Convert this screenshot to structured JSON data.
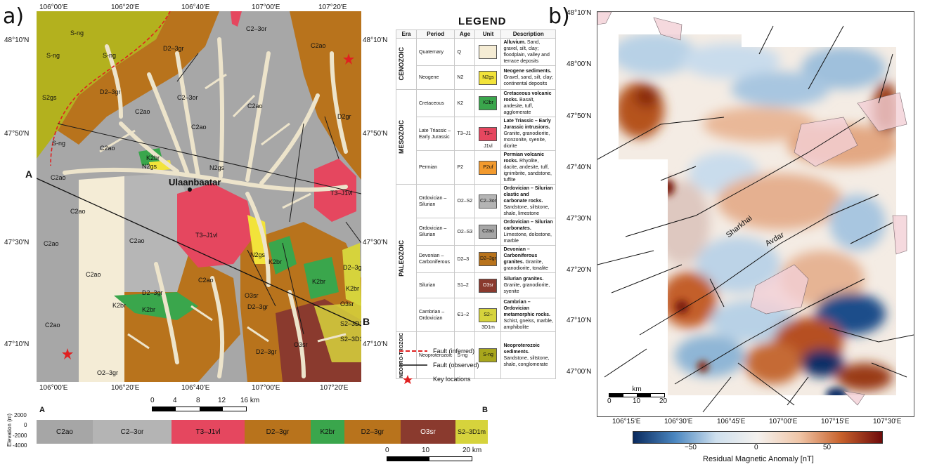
{
  "panel_a_label": "a)",
  "panel_b_label": "b)",
  "map_a": {
    "lon_ticks_top": [
      "106°00'E",
      "106°20'E",
      "106°40'E",
      "107°00'E",
      "107°20'E"
    ],
    "lon_ticks_bottom": [
      "106°00'E",
      "106°20'E",
      "106°40'E",
      "107°00'E",
      "107°20'E"
    ],
    "lat_ticks_left": [
      "48°10'N",
      "47°50'N",
      "47°30'N",
      "47°10'N"
    ],
    "lat_ticks_right": [
      "48°10'N",
      "47°50'N",
      "47°30'N",
      "47°10'N"
    ],
    "city": "Ulaanbaatar",
    "section_start": "A",
    "section_end": "B",
    "unit_labels": {
      "s_ng_1": "S-ng",
      "s_ng_2": "S-ng",
      "s_ng_3": "S-ng",
      "s_ng_4": "S-ng",
      "s2gs": "S2gs",
      "c2ao_1": "C2ao",
      "c2ao_2": "C2ao",
      "c2ao_3": "C2ao",
      "c2ao_4": "C2ao",
      "c2ao_5": "C2ao",
      "c2ao_6": "C2ao",
      "c2ao_7": "C2ao",
      "c2ao_8": "C2ao",
      "c2ao_9": "C2ao",
      "c2ao_10": "C2ao",
      "c2ao_11": "C2ao",
      "c2ao_12": "C2ao",
      "c23or_1": "C2–3or",
      "c23or_2": "C2–3or",
      "d23gr_1": "D2–3gr",
      "d23gr_2": "D2–3gr",
      "d23gr_3": "D2–3gr",
      "d23gr_4": "D2–3gr",
      "d23gr_5": "D2–3gr",
      "d23gr_6": "D2–3gr",
      "n2gs_1": "N2gs",
      "n2gs_2": "N2gs",
      "n2gs_3": "N2gs",
      "k2br_1": "K2br",
      "k2br_2": "K2br",
      "k2br_3": "K2br",
      "k2br_4": "K2br",
      "k2br_5": "K2br",
      "k2br_6": "K2br",
      "t3j1vl_1": "T3–J1vl",
      "t3j1vl_2": "T3–J1vl",
      "o3sr_1": "O3sr",
      "o3sr_2": "O3sr",
      "o3sr_3": "O3sr",
      "d2gr": "D2gr",
      "s23d1m_1": "S2–3D1m",
      "s23d1m_2": "S2–3D1m",
      "o2gr": "O2–3gr"
    },
    "scalebar": {
      "ticks": [
        "0",
        "4",
        "8",
        "12",
        "16 km"
      ]
    }
  },
  "legend": {
    "title": "LEGEND",
    "headers": [
      "Era",
      "Period",
      "Age",
      "Unit",
      "Description"
    ],
    "eras": [
      "CENOZOIC",
      "MESOZOIC",
      "PALEOZOIC",
      "NEOPRO-TROZOIC"
    ],
    "rows": [
      {
        "period": "Quaternary",
        "age": "Q",
        "unit": "",
        "color": "#f5ecd4",
        "title": "Alluvium.",
        "desc": " Sand, gravel, silt, clay; floodplain, valley and terrace deposits"
      },
      {
        "period": "Neogene",
        "age": "N2",
        "unit": "N2gs",
        "color": "#f2e33a",
        "title": "Neogene sediments.",
        "desc": " Gravel, sand, silt, clay; continental deposits"
      },
      {
        "period": "Cretaceous",
        "age": "K2",
        "unit": "K2br",
        "color": "#3aa64c",
        "title": "Cretaceous volcanic rocks.",
        "desc": " Basalt, andesite, tuff, agglomerate"
      },
      {
        "period": "Late Triassic – Early Jurassic",
        "age": "T3–J1",
        "unit": "T3–J1vl",
        "color": "#e5475f",
        "title": "Late Triassic – Early Jurassic intrusions.",
        "desc": " Granite, granodiorite, monzonite, syenite, diorite"
      },
      {
        "period": "Permian",
        "age": "P2",
        "unit": "P2uf",
        "color": "#f29a2e",
        "title": "Permian volcanic rocks.",
        "desc": " Rhyolite, dacite, andesite, tuff, ignimbrite, sandstone, tuffite"
      },
      {
        "period": "Ordovician – Silurian",
        "age": "O2–S2",
        "unit": "C2–3or",
        "color": "#b4b4b4",
        "title": "Ordovician – Silurian clastic and carbonate rocks.",
        "desc": " Sandstone, siltstone, shale, limestone"
      },
      {
        "period": "Ordovician – Silurian",
        "age": "O2–S3",
        "unit": "C2ao",
        "color": "#a6a6a6",
        "title": "Ordovician – Silurian carbonates.",
        "desc": " Limestone, dolostone, marble"
      },
      {
        "period": "Devonian – Carboniferous",
        "age": "D2–3",
        "unit": "D2–3gr",
        "color": "#b8731c",
        "title": "Devonian – Carboniferous granites.",
        "desc": " Granite, granodiorite, tonalite"
      },
      {
        "period": "Silurian",
        "age": "S1–2",
        "unit": "O3sr",
        "color": "#8a3a2e",
        "title": "Silurian granites.",
        "desc": " Granite, granodiorite, syenite"
      },
      {
        "period": "Cambrian – Ordovician",
        "age": "Є1–2",
        "unit": "S2–3D1m",
        "color": "#d6d33c",
        "title": "Cambrian – Ordovician metamorphic rocks.",
        "desc": " Schist, gneiss, marble, amphibolite"
      },
      {
        "period": "Neoproterozoic",
        "age": "S-ng",
        "unit": "S-ng",
        "color": "#a8a61c",
        "title": "Neoproterozoic sediments.",
        "desc": " Sandstone, siltstone, shale, conglomerate"
      }
    ],
    "line_items": [
      "Fault (inferred)",
      "Fault (observed)",
      "Key locations"
    ]
  },
  "cross_section": {
    "ylabel": "Elevation (m)",
    "yticks": [
      "2000",
      "0",
      "-2000",
      "-4000"
    ],
    "start": "A",
    "end": "B",
    "segments": [
      {
        "label": "C2ao",
        "color": "#a6a6a6"
      },
      {
        "label": "C2–3or",
        "color": "#b4b4b4"
      },
      {
        "label": "T3–J1vl",
        "color": "#e5475f"
      },
      {
        "label": "D2–3gr",
        "color": "#b8731c"
      },
      {
        "label": "K2br",
        "color": "#3aa64c"
      },
      {
        "label": "D2–3gr",
        "color": "#b8731c"
      },
      {
        "label": "O3sr",
        "color": "#8a3a2e"
      },
      {
        "label": "S2–3D1m",
        "color": "#d6d33c"
      }
    ],
    "scalebar": {
      "ticks": [
        "0",
        "10",
        "20 km"
      ]
    }
  },
  "map_b": {
    "lat_ticks": [
      "48°10'N",
      "48°00'N",
      "47°50'N",
      "47°40'N",
      "47°30'N",
      "47°20'N",
      "47°10'N",
      "47°00'N"
    ],
    "lon_ticks": [
      "106°15'E",
      "106°30'E",
      "106°45'E",
      "107°00'E",
      "107°15'E",
      "107°30'E"
    ],
    "fault_labels": {
      "sharkhai": "Sharkhai",
      "avdar": "Avdar"
    },
    "scalebar": {
      "unit": "km",
      "ticks": [
        "0",
        "10",
        "20"
      ]
    }
  },
  "colorbar": {
    "label": "Residual Magnetic Anomaly [nT]",
    "ticks": [
      "−50",
      "0",
      "50"
    ],
    "colors": [
      "#0a2a5e",
      "#4a86c0",
      "#cfe0ee",
      "#f4f1ee",
      "#f0c6a8",
      "#c8622c",
      "#6e0a0a"
    ]
  }
}
